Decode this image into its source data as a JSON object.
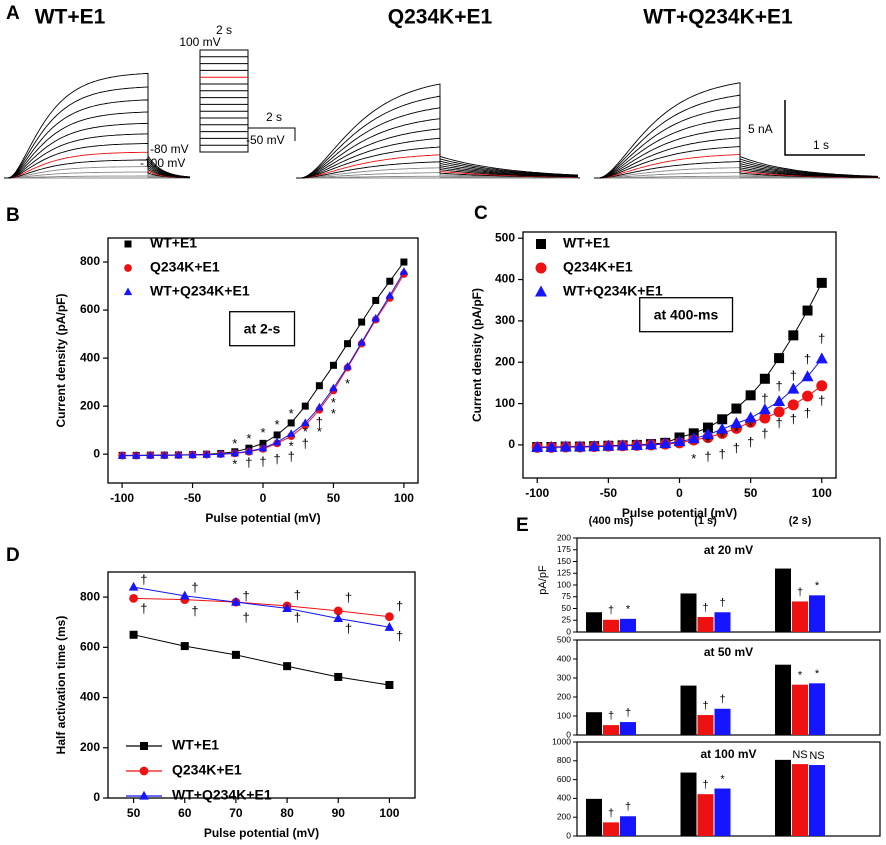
{
  "panel_labels": [
    "A",
    "B",
    "C",
    "D",
    "E"
  ],
  "panel_a": {
    "titles": [
      "WT+E1",
      "Q234K+E1",
      "WT+Q234K+E1"
    ],
    "protocol": [
      "2 s",
      "100 mV",
      "-80 mV",
      "-100 mV",
      "2 s",
      "-50 mV"
    ],
    "scale_bar": [
      "5 nA",
      "1 s"
    ]
  },
  "chart_data": [
    {
      "type": "line",
      "x_label": "Pulse potential (mV)",
      "y_label": "Current density (pA/pF)",
      "inset_label": "at 2-s",
      "x": [
        -100,
        -90,
        -80,
        -70,
        -60,
        -50,
        -40,
        -30,
        -20,
        -10,
        0,
        10,
        20,
        30,
        40,
        50,
        60,
        70,
        80,
        90,
        100
      ],
      "xlim": [
        -110,
        110
      ],
      "xticks": [
        -100,
        -50,
        0,
        50,
        100
      ],
      "ylim": [
        -120,
        900
      ],
      "yticks": [
        0,
        200,
        400,
        600,
        800
      ],
      "series": [
        {
          "name": "WT+E1",
          "color": "#000000",
          "marker": "square",
          "values": [
            -5,
            -5,
            -4,
            -4,
            -3,
            -2,
            0,
            3,
            10,
            25,
            45,
            80,
            130,
            200,
            285,
            370,
            460,
            550,
            640,
            720,
            800
          ]
        },
        {
          "name": "Q234K+E1",
          "color": "#ee1111",
          "marker": "circle",
          "values": [
            -6,
            -6,
            -5,
            -5,
            -4,
            -3,
            -2,
            0,
            3,
            10,
            22,
            45,
            75,
            120,
            185,
            265,
            360,
            460,
            560,
            650,
            750
          ]
        },
        {
          "name": "WT+Q234K+E1",
          "color": "#1515ff",
          "marker": "triangle",
          "values": [
            -6,
            -6,
            -5,
            -5,
            -4,
            -3,
            -2,
            0,
            4,
            12,
            25,
            50,
            85,
            130,
            195,
            275,
            365,
            465,
            565,
            660,
            760
          ]
        }
      ],
      "annotations": [
        {
          "text": "*",
          "x": -20,
          "y": 40
        },
        {
          "text": "*",
          "x": -20,
          "y": -45
        },
        {
          "text": "*",
          "x": -10,
          "y": 60
        },
        {
          "text": "†",
          "x": -10,
          "y": -40
        },
        {
          "text": "*",
          "x": 0,
          "y": 85
        },
        {
          "text": "†",
          "x": 0,
          "y": -35
        },
        {
          "text": "*",
          "x": 10,
          "y": 120
        },
        {
          "text": "†",
          "x": 10,
          "y": -25
        },
        {
          "text": "*",
          "x": 20,
          "y": 165
        },
        {
          "text": "†",
          "x": 20,
          "y": -15
        },
        {
          "text": "*",
          "x": 20,
          "y": 30
        },
        {
          "text": "*",
          "x": 30,
          "y": 90
        },
        {
          "text": "†",
          "x": 30,
          "y": 40
        },
        {
          "text": "†",
          "x": 40,
          "y": 130
        },
        {
          "text": "*",
          "x": 40,
          "y": 90
        },
        {
          "text": "*",
          "x": 50,
          "y": 210
        },
        {
          "text": "*",
          "x": 50,
          "y": 165
        },
        {
          "text": "*",
          "x": 60,
          "y": 290
        }
      ]
    },
    {
      "type": "line",
      "x_label": "Pulse potential (mV)",
      "y_label": "Current density (pA/pF)",
      "inset_label": "at 400-ms",
      "x": [
        -100,
        -90,
        -80,
        -70,
        -60,
        -50,
        -40,
        -30,
        -20,
        -10,
        0,
        10,
        20,
        30,
        40,
        50,
        60,
        70,
        80,
        90,
        100
      ],
      "xlim": [
        -110,
        110
      ],
      "xticks": [
        -100,
        -50,
        0,
        50,
        100
      ],
      "ylim": [
        -80,
        515
      ],
      "yticks": [
        0,
        100,
        200,
        300,
        400,
        500
      ],
      "series": [
        {
          "name": "WT+E1",
          "color": "#000000",
          "marker": "square",
          "values": [
            -5,
            -5,
            -4,
            -4,
            -3,
            -2,
            -1,
            0,
            2,
            5,
            18,
            28,
            42,
            62,
            88,
            120,
            160,
            210,
            265,
            325,
            392
          ]
        },
        {
          "name": "Q234K+E1",
          "color": "#ee1111",
          "marker": "circle",
          "values": [
            -6,
            -6,
            -5,
            -5,
            -4,
            -3,
            -2,
            -1,
            0,
            2,
            5,
            12,
            18,
            28,
            40,
            55,
            65,
            80,
            97,
            118,
            143
          ]
        },
        {
          "name": "WT+Q234K+E1",
          "color": "#1515ff",
          "marker": "triangle",
          "values": [
            -6,
            -6,
            -5,
            -5,
            -4,
            -3,
            -2,
            -1,
            0,
            3,
            8,
            15,
            25,
            38,
            52,
            65,
            85,
            105,
            135,
            165,
            208
          ]
        }
      ],
      "annotations": [
        {
          "text": "*",
          "x": 10,
          "y": -35
        },
        {
          "text": "*",
          "x": 20,
          "y": 5
        },
        {
          "text": "†",
          "x": 20,
          "y": -30
        },
        {
          "text": "*",
          "x": 30,
          "y": 15
        },
        {
          "text": "†",
          "x": 30,
          "y": -25
        },
        {
          "text": "*",
          "x": 40,
          "y": 30
        },
        {
          "text": "†",
          "x": 40,
          "y": -10
        },
        {
          "text": "*",
          "x": 50,
          "y": 42
        },
        {
          "text": "†",
          "x": 50,
          "y": 5
        },
        {
          "text": "†",
          "x": 60,
          "y": 110
        },
        {
          "text": "†",
          "x": 60,
          "y": 25
        },
        {
          "text": "†",
          "x": 70,
          "y": 140
        },
        {
          "text": "†",
          "x": 70,
          "y": 50
        },
        {
          "text": "†",
          "x": 80,
          "y": 165
        },
        {
          "text": "†",
          "x": 80,
          "y": 60
        },
        {
          "text": "†",
          "x": 90,
          "y": 205
        },
        {
          "text": "†",
          "x": 90,
          "y": 75
        },
        {
          "text": "†",
          "x": 100,
          "y": 255
        },
        {
          "text": "†",
          "x": 100,
          "y": 105
        }
      ]
    },
    {
      "type": "line",
      "x_label": "Pulse potential (mV)",
      "y_label": "Half activation time (ms)",
      "x": [
        50,
        60,
        70,
        80,
        90,
        100
      ],
      "xlim": [
        45,
        105
      ],
      "xticks": [
        50,
        60,
        70,
        80,
        90,
        100
      ],
      "ylim": [
        0,
        900
      ],
      "yticks": [
        0,
        200,
        400,
        600,
        800
      ],
      "series": [
        {
          "name": "WT+E1",
          "color": "#000000",
          "marker": "square",
          "values": [
            650,
            605,
            570,
            525,
            482,
            450
          ]
        },
        {
          "name": "Q234K+E1",
          "color": "#ee1111",
          "marker": "circle",
          "values": [
            795,
            790,
            780,
            765,
            745,
            722
          ]
        },
        {
          "name": "WT+Q234K+E1",
          "color": "#1515ff",
          "marker": "triangle",
          "values": [
            840,
            805,
            780,
            755,
            715,
            680
          ]
        }
      ],
      "annotations": [
        {
          "text": "†",
          "x": 52,
          "y": 865
        },
        {
          "text": "†",
          "x": 52,
          "y": 750
        },
        {
          "text": "†",
          "x": 62,
          "y": 835
        },
        {
          "text": "†",
          "x": 62,
          "y": 740
        },
        {
          "text": "†",
          "x": 72,
          "y": 800
        },
        {
          "text": "†",
          "x": 72,
          "y": 715
        },
        {
          "text": "†",
          "x": 82,
          "y": 805
        },
        {
          "text": "†",
          "x": 82,
          "y": 715
        },
        {
          "text": "†",
          "x": 92,
          "y": 795
        },
        {
          "text": "†",
          "x": 92,
          "y": 670
        },
        {
          "text": "†",
          "x": 102,
          "y": 760
        },
        {
          "text": "†",
          "x": 102,
          "y": 640
        }
      ]
    },
    {
      "type": "bar",
      "title": "at 20 mV",
      "y_label": "pA/pF",
      "categories": [
        "(400 ms)",
        "(1 s)",
        "(2 s)"
      ],
      "ylim": [
        0,
        200
      ],
      "yticks": [
        0,
        25,
        50,
        75,
        100,
        125,
        150,
        175,
        200
      ],
      "series": [
        {
          "color": "#000000",
          "values": [
            42,
            82,
            135
          ]
        },
        {
          "color": "#ee1111",
          "values": [
            26,
            32,
            65
          ],
          "marks": [
            "†",
            "†",
            "†"
          ]
        },
        {
          "color": "#1515ff",
          "values": [
            28,
            42,
            78
          ],
          "marks": [
            "*",
            "†",
            "*"
          ]
        }
      ]
    },
    {
      "type": "bar",
      "title": "at 50 mV",
      "ylim": [
        0,
        500
      ],
      "yticks": [
        0,
        100,
        200,
        300,
        400,
        500
      ],
      "series": [
        {
          "color": "#000000",
          "values": [
            120,
            260,
            370
          ]
        },
        {
          "color": "#ee1111",
          "values": [
            52,
            105,
            265
          ],
          "marks": [
            "†",
            "†",
            "*"
          ]
        },
        {
          "color": "#1515ff",
          "values": [
            68,
            138,
            272
          ],
          "marks": [
            "†",
            "†",
            "*"
          ]
        }
      ]
    },
    {
      "type": "bar",
      "title": "at 100 mV",
      "ylim": [
        0,
        1000
      ],
      "yticks": [
        0,
        200,
        400,
        600,
        800,
        1000
      ],
      "series": [
        {
          "color": "#000000",
          "values": [
            395,
            675,
            810
          ]
        },
        {
          "color": "#ee1111",
          "values": [
            145,
            445,
            765
          ],
          "marks": [
            "†",
            "†",
            "NS"
          ]
        },
        {
          "color": "#1515ff",
          "values": [
            210,
            505,
            755
          ],
          "marks": [
            "†",
            "*",
            "NS"
          ]
        }
      ]
    }
  ]
}
